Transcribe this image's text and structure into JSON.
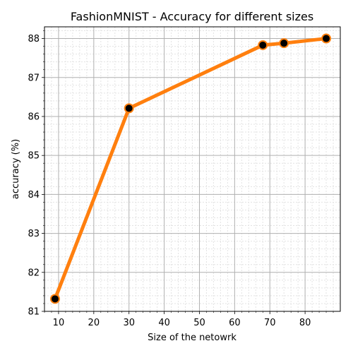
{
  "chart_data": {
    "type": "line",
    "title": "FashionMNIST -  Accuracy for different sizes",
    "xlabel": "Size of the netowrk",
    "ylabel": "accuracy (%)",
    "xlim": [
      6,
      90
    ],
    "ylim": [
      81,
      88.3
    ],
    "xticks": [
      10,
      20,
      30,
      40,
      50,
      60,
      70,
      80
    ],
    "yticks": [
      81,
      82,
      83,
      84,
      85,
      86,
      87,
      88
    ],
    "grid": true,
    "series": [
      {
        "x": [
          9,
          30,
          68,
          74,
          86
        ],
        "y": [
          81.32,
          86.21,
          87.83,
          87.88,
          88.0
        ],
        "line_color": "#ff7f0e",
        "marker_color": "#000000"
      }
    ]
  }
}
